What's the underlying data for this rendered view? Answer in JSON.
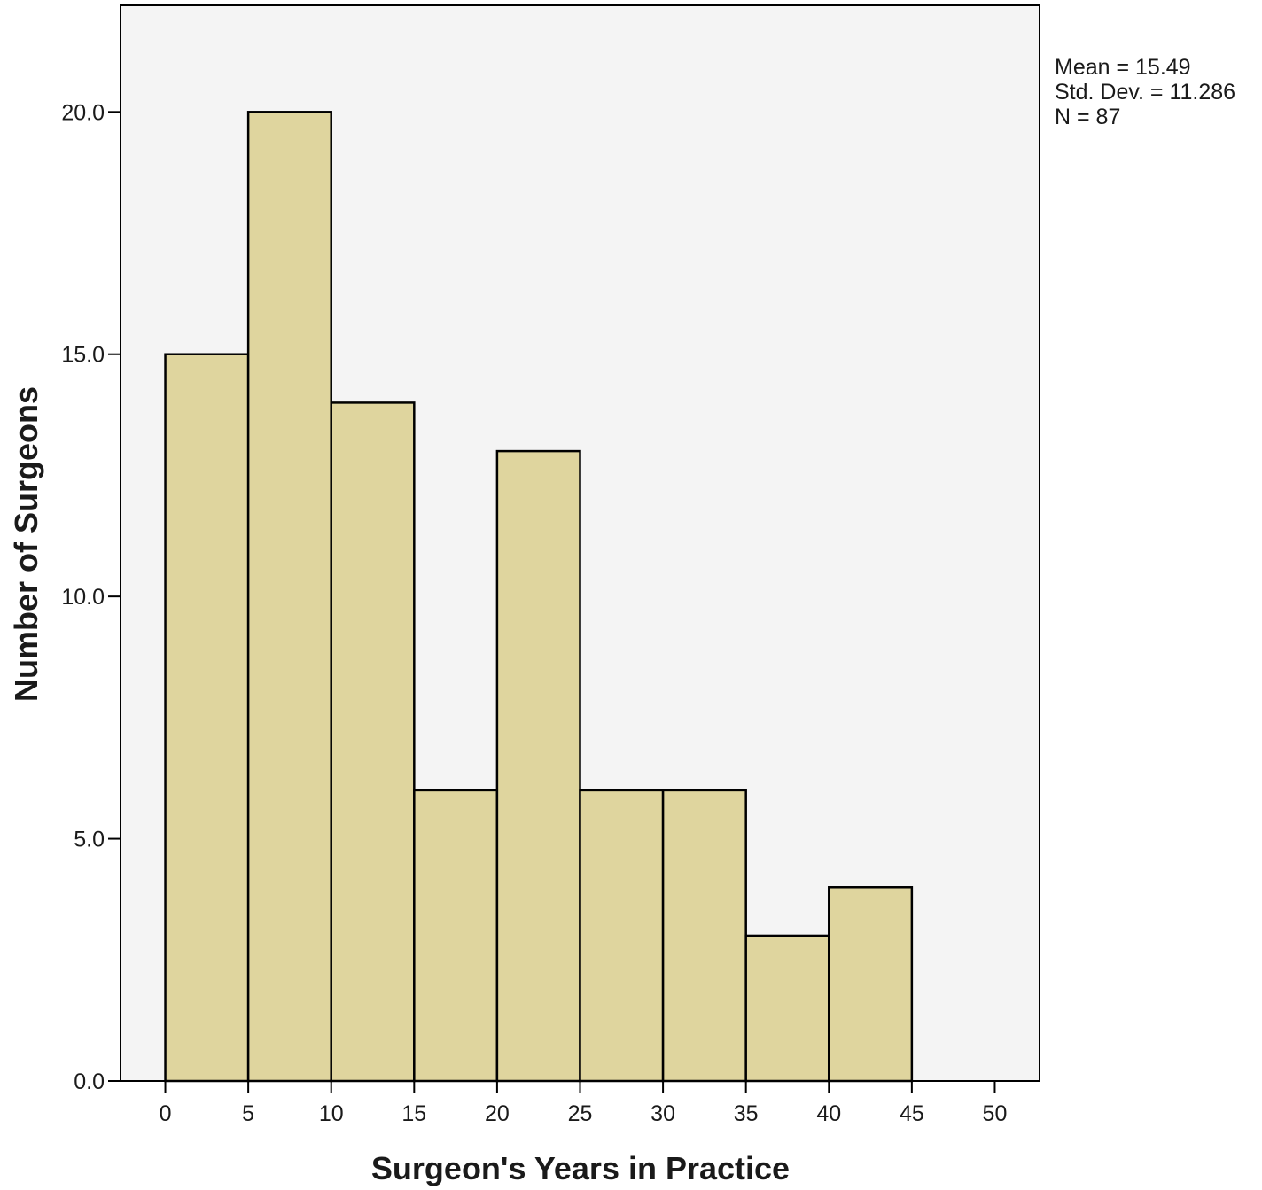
{
  "chart_data": {
    "type": "bar",
    "subtype": "histogram",
    "bin_width": 5,
    "x_ticks": [
      0,
      5,
      10,
      15,
      20,
      25,
      30,
      35,
      40,
      45,
      50
    ],
    "x_tick_labels": [
      "0",
      "5",
      "10",
      "15",
      "20",
      "25",
      "30",
      "35",
      "40",
      "45",
      "50"
    ],
    "y_ticks": [
      0,
      5,
      10,
      15,
      20
    ],
    "y_tick_labels": [
      "0.0",
      "5.0",
      "10.0",
      "15.0",
      "20.0"
    ],
    "bins": [
      {
        "start": 0,
        "end": 5,
        "value": 15
      },
      {
        "start": 5,
        "end": 10,
        "value": 20
      },
      {
        "start": 10,
        "end": 15,
        "value": 14
      },
      {
        "start": 15,
        "end": 20,
        "value": 6
      },
      {
        "start": 20,
        "end": 25,
        "value": 13
      },
      {
        "start": 25,
        "end": 30,
        "value": 6
      },
      {
        "start": 30,
        "end": 35,
        "value": 6
      },
      {
        "start": 35,
        "end": 40,
        "value": 3
      },
      {
        "start": 40,
        "end": 45,
        "value": 4
      }
    ],
    "xlabel": "Surgeon's Years in Practice",
    "ylabel": "Number of Surgeons",
    "xlim": [
      -2.7,
      52.7
    ],
    "ylim": [
      0,
      22.2
    ],
    "grid": false,
    "stats": {
      "mean": "Mean = 15.49",
      "std_dev": "Std. Dev. = 11.286",
      "n": "N = 87"
    },
    "colors": {
      "bar_fill": "#DFD59E",
      "bar_stroke": "#000000",
      "plot_background": "#F4F4F4"
    }
  }
}
